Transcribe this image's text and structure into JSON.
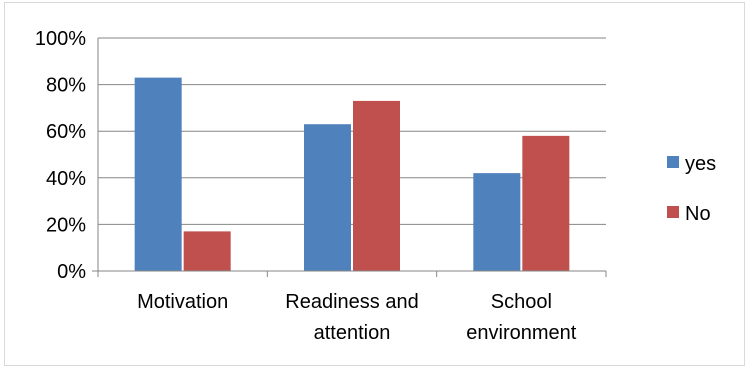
{
  "chart_data": {
    "type": "bar",
    "categories": [
      [
        "Motivation"
      ],
      [
        "Readiness and",
        "attention"
      ],
      [
        "School",
        "environment"
      ]
    ],
    "series": [
      {
        "name": "yes",
        "color": "#4f81bd",
        "values": [
          83,
          63,
          42
        ]
      },
      {
        "name": "No",
        "color": "#c0504d",
        "values": [
          17,
          73,
          58
        ]
      }
    ],
    "ylim": [
      0,
      100
    ],
    "yticks": [
      "0%",
      "20%",
      "40%",
      "60%",
      "80%",
      "100%"
    ],
    "grid": true,
    "legend": "right"
  }
}
